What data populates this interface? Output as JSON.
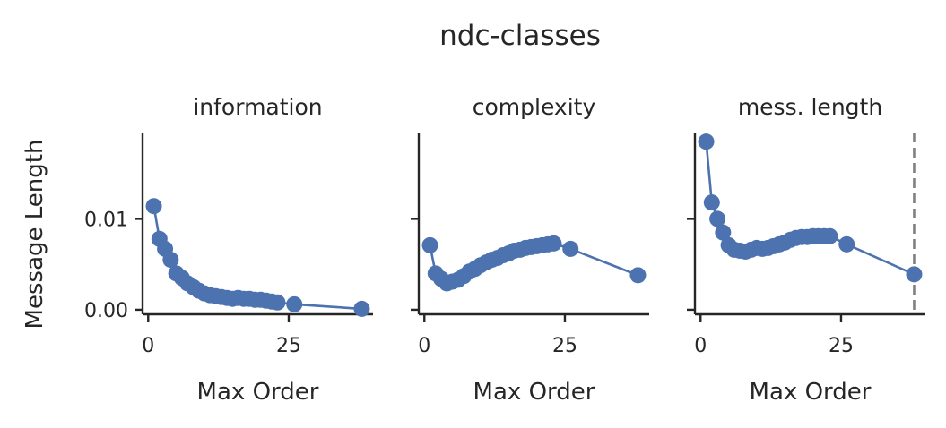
{
  "figure": {
    "suptitle": "ndc-classes",
    "colors": {
      "series": "#4C72B0",
      "axis": "#262626",
      "vline": "#808080"
    }
  },
  "chart_data": [
    {
      "type": "line",
      "title": "information",
      "xlabel": "Max Order",
      "ylabel": "Message Length",
      "xlim": [
        -1,
        40
      ],
      "ylim": [
        -0.0005,
        0.0195
      ],
      "xticks": [
        0,
        25
      ],
      "yticks": [
        0.0,
        0.01
      ],
      "ytick_labels": [
        "0.00",
        "0.01"
      ],
      "grid": false,
      "series": [
        {
          "x": [
            1,
            2,
            3,
            4,
            5,
            6,
            7,
            8,
            9,
            10,
            11,
            12,
            13,
            14,
            15,
            16,
            17,
            18,
            19,
            20,
            21,
            22,
            23,
            26,
            38
          ],
          "y": [
            0.0114,
            0.0078,
            0.0067,
            0.0055,
            0.004,
            0.0035,
            0.0029,
            0.0025,
            0.0021,
            0.0018,
            0.0016,
            0.0015,
            0.0014,
            0.0013,
            0.0012,
            0.0013,
            0.0012,
            0.0012,
            0.0011,
            0.0011,
            0.001,
            0.0009,
            0.0008,
            0.0006,
            0.0001
          ]
        }
      ]
    },
    {
      "type": "line",
      "title": "complexity",
      "xlabel": "Max Order",
      "ylabel": "",
      "xlim": [
        -1,
        40
      ],
      "ylim": [
        -0.0005,
        0.0195
      ],
      "xticks": [
        0,
        25
      ],
      "yticks": [
        0.0,
        0.01
      ],
      "ytick_labels": [
        "",
        ""
      ],
      "grid": false,
      "series": [
        {
          "x": [
            1,
            2,
            3,
            4,
            5,
            6,
            7,
            8,
            9,
            10,
            11,
            12,
            13,
            14,
            15,
            16,
            17,
            18,
            19,
            20,
            21,
            22,
            23,
            26,
            38
          ],
          "y": [
            0.0071,
            0.004,
            0.0034,
            0.0029,
            0.0031,
            0.0033,
            0.0037,
            0.0042,
            0.0045,
            0.0049,
            0.0052,
            0.0055,
            0.0057,
            0.006,
            0.0062,
            0.0065,
            0.0066,
            0.0068,
            0.0069,
            0.007,
            0.0071,
            0.0072,
            0.0073,
            0.0067,
            0.0038
          ]
        }
      ]
    },
    {
      "type": "line",
      "title": "mess. length",
      "xlabel": "Max Order",
      "ylabel": "",
      "xlim": [
        -1,
        40
      ],
      "ylim": [
        -0.0005,
        0.0195
      ],
      "xticks": [
        0,
        25
      ],
      "yticks": [
        0.0,
        0.01
      ],
      "ytick_labels": [
        "",
        ""
      ],
      "grid": false,
      "vline_x": 38,
      "series": [
        {
          "x": [
            1,
            2,
            3,
            4,
            5,
            6,
            7,
            8,
            9,
            10,
            11,
            12,
            13,
            14,
            15,
            16,
            17,
            18,
            19,
            20,
            21,
            22,
            23,
            26,
            38
          ],
          "y": [
            0.0185,
            0.0118,
            0.01,
            0.0085,
            0.0071,
            0.0066,
            0.0065,
            0.0064,
            0.0066,
            0.0068,
            0.0067,
            0.0068,
            0.007,
            0.0072,
            0.0074,
            0.0077,
            0.0079,
            0.008,
            0.008,
            0.0081,
            0.0081,
            0.0081,
            0.0081,
            0.0072,
            0.0039
          ]
        }
      ]
    }
  ]
}
